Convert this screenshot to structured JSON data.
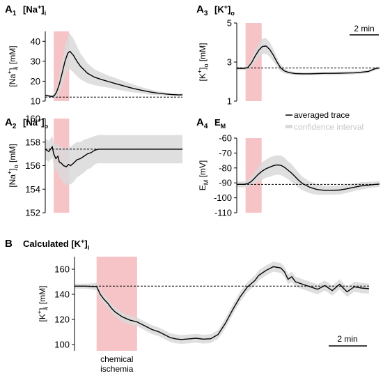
{
  "colors": {
    "trace": "#000000",
    "ci": "#d9d9d9",
    "ischemia": "#f6c4c7",
    "baseline": "#000000"
  },
  "legend": {
    "trace": "averaged trace",
    "ci": "confidence interval"
  },
  "ischemia_label": [
    "chemical",
    "ischemia"
  ],
  "scale_bar_top": "2 min",
  "scale_bar_bottom": "2 min",
  "chart_data": [
    {
      "id": "A1",
      "type": "line",
      "panel_label": "A",
      "panel_sub": "1",
      "title_parts": [
        {
          "t": "[Na",
          "s": "base"
        },
        {
          "t": "+",
          "s": "sup"
        },
        {
          "t": "]",
          "s": "base"
        },
        {
          "t": "i",
          "s": "sub"
        }
      ],
      "ylabel_parts": [
        {
          "t": "[Na",
          "s": "base"
        },
        {
          "t": "+",
          "s": "sup"
        },
        {
          "t": "]",
          "s": "base"
        },
        {
          "t": "i",
          "s": "sub"
        },
        {
          "t": " [mM]",
          "s": "base"
        }
      ],
      "ylim": [
        10,
        45
      ],
      "yticks": [
        10,
        20,
        30,
        40
      ],
      "baseline": 12,
      "ischemia": [
        1.2,
        3.4
      ],
      "x": [
        0,
        0.5,
        1,
        1.3,
        1.6,
        2,
        2.4,
        2.8,
        3.2,
        3.5,
        4,
        4.5,
        5,
        6,
        7,
        8,
        9,
        10,
        11,
        12,
        13,
        14,
        15,
        16,
        17,
        18,
        19,
        19.5
      ],
      "y": [
        13,
        12.6,
        12.3,
        12.8,
        14.5,
        18.5,
        24,
        30,
        34,
        35,
        33,
        30,
        27.5,
        24,
        22,
        20.8,
        19.8,
        18.8,
        17.8,
        16.8,
        16,
        15.2,
        14.5,
        14,
        13.6,
        13.3,
        13.1,
        13.2
      ],
      "ci_half": [
        0.6,
        0.6,
        0.6,
        1.2,
        2.5,
        4.5,
        6,
        7.5,
        8.5,
        9,
        8.5,
        7.5,
        6.5,
        5,
        4,
        3.5,
        3,
        2.8,
        2.5,
        2.2,
        1.8,
        1.5,
        1.3,
        1,
        0.8,
        0.7,
        0.6,
        0.6
      ]
    },
    {
      "id": "A3",
      "type": "line",
      "panel_label": "A",
      "panel_sub": "3",
      "title_parts": [
        {
          "t": "[K",
          "s": "base"
        },
        {
          "t": "+",
          "s": "sup"
        },
        {
          "t": "]",
          "s": "base"
        },
        {
          "t": "o",
          "s": "sub"
        }
      ],
      "ylabel_parts": [
        {
          "t": "[K",
          "s": "base"
        },
        {
          "t": "+",
          "s": "sup"
        },
        {
          "t": "]",
          "s": "base"
        },
        {
          "t": "o",
          "s": "sub"
        },
        {
          "t": " [mM]",
          "s": "base"
        }
      ],
      "ylim": [
        1,
        5
      ],
      "yticks": [
        1,
        3,
        5
      ],
      "baseline": 2.7,
      "ischemia": [
        1.2,
        3.4
      ],
      "x": [
        0,
        1,
        1.5,
        2,
        2.5,
        3,
        3.5,
        4,
        4.5,
        5,
        5.5,
        6,
        6.5,
        7,
        7.5,
        8,
        9,
        10,
        11,
        12,
        13,
        14,
        15,
        16,
        17,
        18,
        18.5,
        19,
        19.5
      ],
      "y": [
        2.68,
        2.67,
        2.72,
        2.95,
        3.3,
        3.6,
        3.8,
        3.82,
        3.65,
        3.35,
        3.0,
        2.7,
        2.55,
        2.48,
        2.44,
        2.41,
        2.4,
        2.4,
        2.41,
        2.42,
        2.42,
        2.43,
        2.44,
        2.45,
        2.48,
        2.52,
        2.6,
        2.67,
        2.7
      ],
      "ci_half": [
        0.08,
        0.08,
        0.12,
        0.2,
        0.3,
        0.35,
        0.4,
        0.4,
        0.38,
        0.32,
        0.25,
        0.18,
        0.13,
        0.1,
        0.09,
        0.08,
        0.08,
        0.08,
        0.08,
        0.08,
        0.08,
        0.08,
        0.08,
        0.08,
        0.08,
        0.08,
        0.08,
        0.08,
        0.08
      ]
    },
    {
      "id": "A2",
      "type": "line",
      "panel_label": "A",
      "panel_sub": "2",
      "title_parts": [
        {
          "t": "[Na",
          "s": "base"
        },
        {
          "t": "+",
          "s": "sup"
        },
        {
          "t": "]",
          "s": "base"
        },
        {
          "t": "o",
          "s": "sub"
        }
      ],
      "ylabel_parts": [
        {
          "t": "[Na",
          "s": "base"
        },
        {
          "t": "+",
          "s": "sup"
        },
        {
          "t": "]",
          "s": "base"
        },
        {
          "t": "o",
          "s": "sub"
        },
        {
          "t": " [mM]",
          "s": "base"
        }
      ],
      "ylim": [
        152,
        160
      ],
      "yticks": [
        152,
        154,
        156,
        158,
        160
      ],
      "baseline": 157.4,
      "ischemia": [
        1.2,
        3.4
      ],
      "x": [
        0,
        0.5,
        1,
        1.2,
        1.5,
        1.8,
        2,
        2.3,
        2.6,
        3,
        3.3,
        3.6,
        4,
        4.5,
        5,
        5.5,
        6,
        6.5,
        7,
        7.5,
        8,
        9,
        10,
        12,
        14,
        16,
        18,
        19.5
      ],
      "y": [
        157.4,
        157.2,
        157.6,
        157.0,
        156.6,
        156.8,
        156.3,
        156.2,
        156.0,
        155.9,
        156.1,
        156.0,
        156.2,
        156.5,
        156.6,
        156.8,
        157.0,
        157.1,
        157.3,
        157.4,
        157.4,
        157.4,
        157.4,
        157.4,
        157.4,
        157.4,
        157.4,
        157.4
      ],
      "ci_half": [
        0.9,
        0.9,
        0.9,
        1.0,
        1.1,
        1.2,
        1.3,
        1.4,
        1.5,
        1.6,
        1.6,
        1.6,
        1.6,
        1.5,
        1.4,
        1.4,
        1.3,
        1.3,
        1.2,
        1.2,
        1.2,
        1.2,
        1.2,
        1.2,
        1.2,
        1.2,
        1.2,
        1.2
      ]
    },
    {
      "id": "A4",
      "type": "line",
      "panel_label": "A",
      "panel_sub": "4",
      "title_parts": [
        {
          "t": "E",
          "s": "base"
        },
        {
          "t": "M",
          "s": "sub"
        }
      ],
      "ylabel_parts": [
        {
          "t": "E",
          "s": "base"
        },
        {
          "t": "M",
          "s": "sub"
        },
        {
          "t": " [mV]",
          "s": "base"
        }
      ],
      "ylim": [
        -110,
        -60
      ],
      "yticks": [
        -110,
        -100,
        -90,
        -80,
        -70,
        -60
      ],
      "baseline": -91,
      "ischemia": [
        1.2,
        3.4
      ],
      "x": [
        0,
        1,
        1.5,
        2,
        2.5,
        3,
        3.5,
        4,
        4.5,
        5,
        5.5,
        6,
        6.5,
        7,
        7.5,
        8,
        8.5,
        9,
        10,
        11,
        12,
        13,
        14,
        15,
        16,
        17,
        18,
        19,
        19.5
      ],
      "y": [
        -91,
        -91,
        -90.5,
        -89,
        -86.5,
        -84,
        -82,
        -80.5,
        -79.5,
        -78.5,
        -78,
        -78.2,
        -79.5,
        -81.5,
        -83.5,
        -86,
        -88.5,
        -90.5,
        -93,
        -94.5,
        -95,
        -95,
        -94.8,
        -94,
        -93,
        -92,
        -91.5,
        -91,
        -90.8
      ],
      "ci_half": [
        2,
        2,
        2.5,
        3,
        4,
        5,
        6,
        6,
        6.5,
        6.5,
        6.5,
        6.5,
        6.5,
        6,
        6,
        5.5,
        5,
        4.5,
        4,
        3.5,
        3,
        3,
        3,
        2.8,
        2.5,
        2.5,
        2.2,
        2,
        2
      ]
    },
    {
      "id": "B",
      "type": "line",
      "panel_label": "B",
      "panel_sub": "",
      "title_parts": [
        {
          "t": "Calculated [K",
          "s": "base"
        },
        {
          "t": "+",
          "s": "sup"
        },
        {
          "t": "]",
          "s": "base"
        },
        {
          "t": "i",
          "s": "sub"
        }
      ],
      "ylabel_parts": [
        {
          "t": "[K",
          "s": "base"
        },
        {
          "t": "+",
          "s": "sup"
        },
        {
          "t": "]",
          "s": "base"
        },
        {
          "t": "i",
          "s": "sub"
        },
        {
          "t": " [mM]",
          "s": "base"
        }
      ],
      "ylim": [
        95,
        170
      ],
      "yticks": [
        100,
        120,
        140,
        160
      ],
      "baseline": 146.5,
      "ischemia": [
        1.2,
        3.4
      ],
      "x": [
        0,
        0.6,
        1.0,
        1.2,
        1.4,
        1.6,
        1.8,
        2.0,
        2.2,
        2.6,
        3.0,
        3.4,
        3.8,
        4.2,
        4.6,
        5.0,
        5.2,
        5.5,
        5.8,
        6.2,
        6.6,
        7.0,
        7.4,
        7.8,
        8.2,
        8.6,
        9.0,
        9.4,
        9.8,
        10.0,
        10.4,
        10.8,
        11.2,
        11.4,
        11.6,
        11.8,
        12.0,
        12.4,
        12.8,
        13.2,
        13.6,
        14.0,
        14.4,
        14.8,
        15.2,
        15.6,
        16.0
      ],
      "y": [
        146.5,
        146.5,
        146.2,
        146.3,
        140,
        136,
        133,
        129,
        126,
        122,
        119.5,
        118,
        115,
        112,
        110,
        107,
        105.5,
        104.5,
        104,
        104.5,
        105,
        104.3,
        104.6,
        108,
        117,
        128,
        138,
        146,
        151,
        155,
        159,
        162,
        161,
        158,
        152,
        154,
        150,
        148,
        146,
        144,
        147,
        143,
        148,
        142,
        146,
        145,
        144.5
      ],
      "ci_half": [
        2,
        2,
        2.5,
        3,
        3.5,
        3.5,
        3.5,
        3.5,
        3.5,
        3.5,
        3.5,
        3.5,
        3.5,
        3.5,
        3.5,
        3.5,
        3.5,
        3.5,
        3.5,
        3.5,
        3.5,
        3.5,
        3.5,
        3.5,
        4,
        4,
        4,
        4,
        4,
        4,
        4,
        4,
        4,
        4,
        4,
        4,
        4,
        4,
        4,
        4,
        4,
        4,
        4,
        4,
        4,
        4,
        4
      ]
    }
  ]
}
